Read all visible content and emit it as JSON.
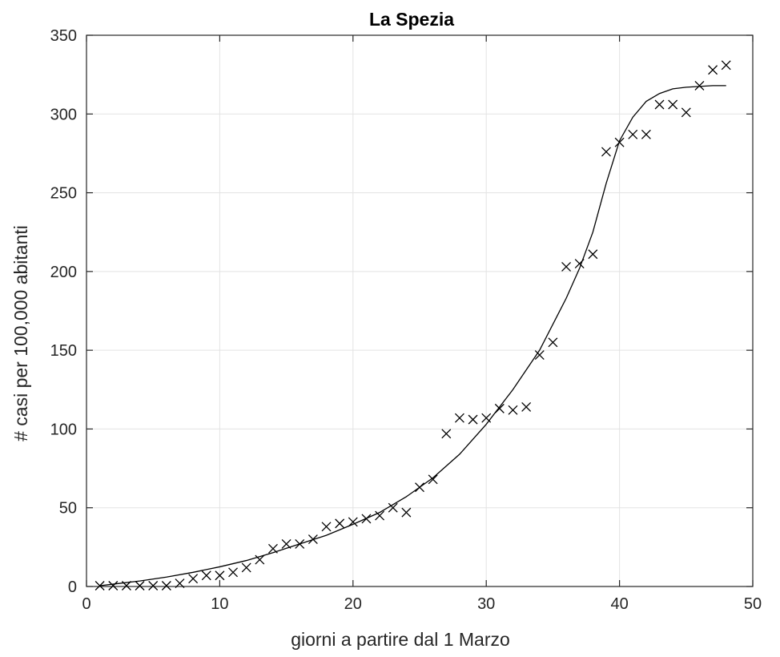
{
  "chart_data": {
    "type": "scatter",
    "title": "La Spezia",
    "xlabel": "giorni a partire dal 1 Marzo",
    "ylabel": "# casi per 100,000 abitanti",
    "xlim": [
      0,
      50
    ],
    "ylim": [
      0,
      350
    ],
    "xticks": [
      0,
      10,
      20,
      30,
      40,
      50
    ],
    "yticks": [
      0,
      50,
      100,
      150,
      200,
      250,
      300,
      350
    ],
    "grid": true,
    "series": [
      {
        "kind": "markers",
        "marker": "x",
        "color": "#000000",
        "x": [
          1,
          2,
          3,
          4,
          5,
          6,
          7,
          8,
          9,
          10,
          11,
          12,
          13,
          14,
          15,
          16,
          17,
          18,
          19,
          20,
          21,
          22,
          23,
          24,
          25,
          26,
          27,
          28,
          29,
          30,
          31,
          32,
          33,
          34,
          35,
          36,
          37,
          38,
          39,
          40,
          41,
          42,
          43,
          44,
          45,
          46,
          47,
          48
        ],
        "y": [
          0.5,
          0.5,
          0.5,
          0.5,
          0.5,
          0.5,
          2,
          5,
          7,
          7,
          9,
          12,
          17,
          24,
          27,
          27,
          30,
          38,
          40,
          41,
          43,
          45,
          50,
          47,
          63,
          68,
          97,
          107,
          106,
          107,
          113,
          112,
          114,
          147,
          155,
          203,
          205,
          211,
          276,
          282,
          287,
          287,
          306,
          306,
          301,
          318,
          328,
          331
        ]
      },
      {
        "kind": "line",
        "color": "#000000",
        "x": [
          1,
          2,
          4,
          6,
          8,
          10,
          12,
          14,
          16,
          18,
          20,
          22,
          24,
          26,
          28,
          30,
          32,
          34,
          36,
          37,
          38,
          39,
          40,
          41,
          42,
          43,
          44,
          45,
          46,
          47,
          48
        ],
        "y": [
          0.5,
          1.5,
          3.5,
          6,
          9,
          12.5,
          16.5,
          21.5,
          27,
          32.5,
          39.5,
          47,
          57,
          69,
          84,
          103,
          125,
          150,
          183,
          202,
          225,
          256,
          283,
          298,
          308,
          313,
          316,
          317,
          317.5,
          318,
          318
        ]
      }
    ]
  }
}
